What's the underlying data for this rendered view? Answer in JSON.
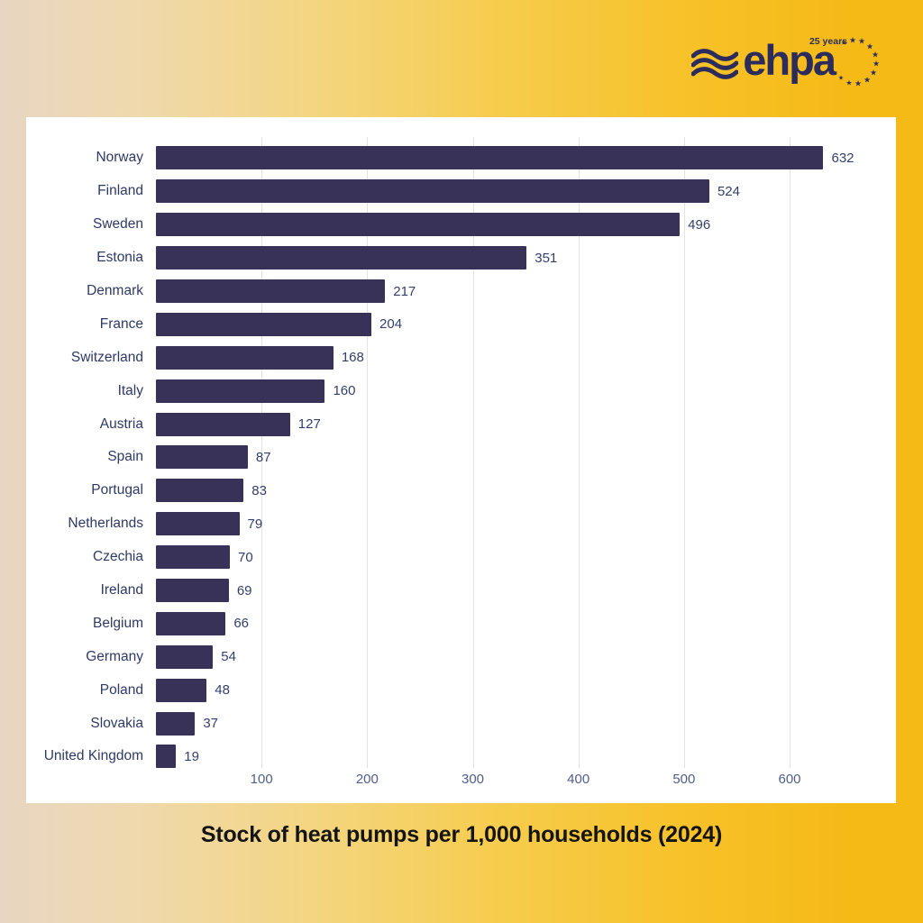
{
  "logo": {
    "wordmark": "ehpa",
    "tagline": "25 years",
    "color": "#2b2c5c"
  },
  "chart_data": {
    "type": "bar",
    "orientation": "horizontal",
    "title": "Stock of heat pumps per 1,000 households (2024)",
    "categories": [
      "Norway",
      "Finland",
      "Sweden",
      "Estonia",
      "Denmark",
      "France",
      "Switzerland",
      "Italy",
      "Austria",
      "Spain",
      "Portugal",
      "Netherlands",
      "Czechia",
      "Ireland",
      "Belgium",
      "Germany",
      "Poland",
      "Slovakia",
      "United Kingdom"
    ],
    "values": [
      632,
      524,
      496,
      351,
      217,
      204,
      168,
      160,
      127,
      87,
      83,
      79,
      70,
      69,
      66,
      54,
      48,
      37,
      19
    ],
    "x_ticks": [
      100,
      200,
      300,
      400,
      500,
      600
    ],
    "xlim": [
      0,
      680
    ],
    "grid": true,
    "legend": false,
    "value_labels": true,
    "bar_color": "#383259"
  },
  "caption": "Stock of heat pumps per 1,000 households (2024)",
  "colors": {
    "background_left": "#e8d6c3",
    "background_right": "#f6ba17",
    "card_background": "#ffffff",
    "bar": "#383259",
    "category_label": "#2e3a64",
    "value_label": "#333f6c",
    "tick_label": "#4f5e8a",
    "gridline": "#e3e3e3",
    "title_text": "#141414"
  }
}
